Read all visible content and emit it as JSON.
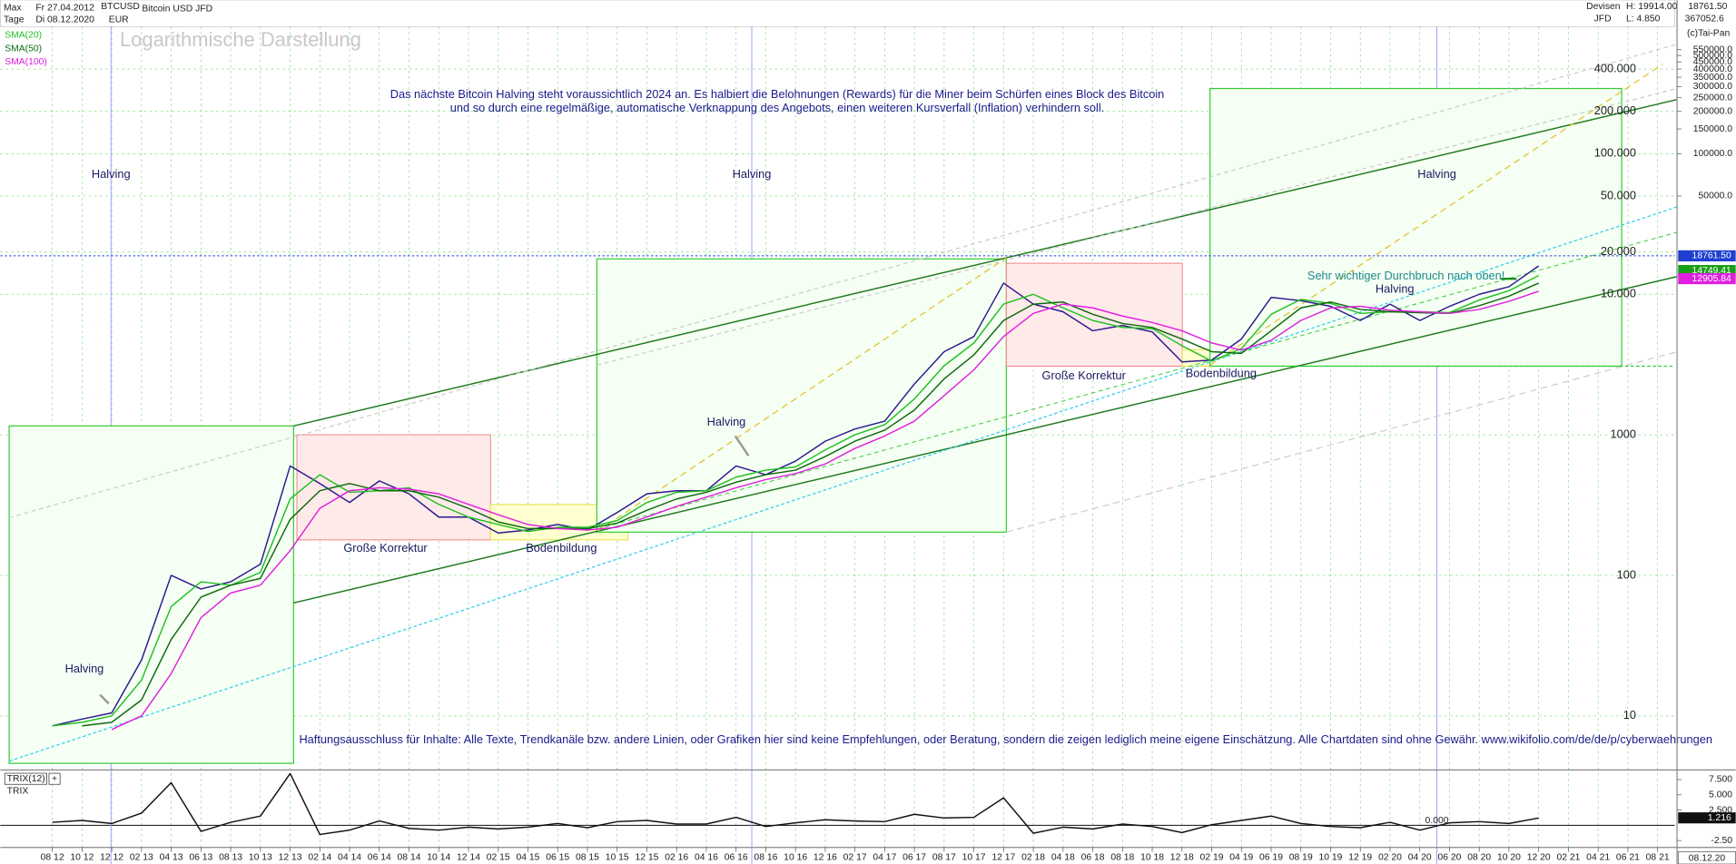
{
  "header": {
    "range": "Max",
    "from": "Fr 27.04.2012",
    "symbol": "BTCUSD",
    "interval": "Tage",
    "to": "Di 08.12.2020",
    "currency": "EUR",
    "market": "Devisen",
    "broker": "JFD",
    "high": "H: 19914.00",
    "low": "L: 4.850",
    "price": "18761.50",
    "volume": "367052.6",
    "copyright": "(c)Tai-Pan",
    "current_date": "08.12.20"
  },
  "chart_data": [
    {
      "type": "line",
      "scale": "log",
      "grid": true,
      "subtitle": "Logarithmische Darstellung",
      "categories": [
        "08 12",
        "10 12",
        "12 12",
        "02 13",
        "04 13",
        "06 13",
        "08 13",
        "10 13",
        "12 13",
        "02 14",
        "04 14",
        "06 14",
        "08 14",
        "10 14",
        "12 14",
        "02 15",
        "04 15",
        "06 15",
        "08 15",
        "10 15",
        "12 15",
        "02 16",
        "04 16",
        "06 16",
        "08 16",
        "10 16",
        "12 16",
        "02 17",
        "04 17",
        "06 17",
        "08 17",
        "10 17",
        "12 17",
        "02 18",
        "04 18",
        "06 18",
        "08 18",
        "10 18",
        "12 18",
        "02 19",
        "04 19",
        "06 19",
        "08 19",
        "10 19",
        "12 19",
        "02 20",
        "04 20",
        "06 20",
        "08 20",
        "10 20",
        "12 20",
        "02 21",
        "04 21",
        "06 21",
        "08 21"
      ],
      "ylim": [
        4.2,
        1240000
      ],
      "yticks": [
        10,
        100,
        1000,
        {
          "value": 10000,
          "label": "10.000"
        },
        {
          "value": 20000,
          "label": "20.000"
        },
        {
          "value": 50000,
          "label": "50.000"
        },
        {
          "value": 100000,
          "label": "100.000"
        },
        {
          "value": 200000,
          "label": "200.000"
        },
        {
          "value": 400000,
          "label": "400.000"
        }
      ],
      "yticks_right": [
        {
          "value": 50000,
          "label": "50000.0"
        },
        {
          "value": 100000,
          "label": "100000.0"
        },
        {
          "value": 150000,
          "label": "150000.0"
        },
        {
          "value": 200000,
          "label": "200000.0"
        },
        {
          "value": 250000,
          "label": "250000.0"
        },
        {
          "value": 300000,
          "label": "300000.0"
        },
        {
          "value": 350000,
          "label": "350000.0"
        },
        {
          "value": 400000,
          "label": "400000.0"
        },
        {
          "value": 450000,
          "label": "450000.0"
        },
        {
          "value": 500000,
          "label": "500000.0"
        },
        {
          "value": 550000,
          "label": "550000.0"
        }
      ],
      "series": [
        {
          "name": "Bitcoin USD JFD",
          "color": "#2a1a8c",
          "last": {
            "value": 18761.5,
            "label": "18761.50"
          },
          "last_color": "#1f3fd0",
          "values": [
            8.5,
            9.5,
            10.5,
            25,
            100,
            80,
            90,
            120,
            600,
            450,
            330,
            470,
            380,
            260,
            260,
            200,
            210,
            230,
            210,
            280,
            380,
            400,
            400,
            600,
            520,
            650,
            900,
            1100,
            1250,
            2300,
            3900,
            5000,
            12000,
            8500,
            7500,
            5500,
            6000,
            5400,
            3300,
            3400,
            4800,
            9500,
            9000,
            8200,
            6500,
            8500,
            6500,
            8200,
            10000,
            11300,
            15900,
            null,
            null,
            null,
            null
          ]
        },
        {
          "name": "SMA(20)",
          "color": "#22c022",
          "last": 14749.41,
          "last_color": "#18a018",
          "values": [
            8.5,
            9,
            10,
            18,
            60,
            90,
            85,
            105,
            350,
            520,
            390,
            400,
            420,
            320,
            260,
            230,
            205,
            220,
            220,
            245,
            330,
            390,
            400,
            500,
            560,
            590,
            780,
            1000,
            1180,
            1800,
            3100,
            4500,
            8500,
            10000,
            8000,
            6500,
            5800,
            5700,
            4300,
            3350,
            4100,
            7200,
            9200,
            8600,
            7300,
            7500,
            7500,
            7400,
            9100,
            10600,
            13600,
            null,
            null,
            null,
            null
          ]
        },
        {
          "name": "SMA(50)",
          "color": "#0e6a0e",
          "values": [
            null,
            8.5,
            9,
            13,
            35,
            70,
            85,
            95,
            250,
            400,
            450,
            400,
            400,
            360,
            300,
            240,
            215,
            215,
            215,
            235,
            290,
            350,
            390,
            460,
            520,
            560,
            700,
            900,
            1080,
            1500,
            2500,
            3700,
            6500,
            8500,
            8800,
            7200,
            6200,
            5800,
            4800,
            3900,
            3800,
            5500,
            8000,
            8800,
            7800,
            7500,
            7400,
            7300,
            8300,
            9700,
            12000,
            null,
            null,
            null,
            null
          ]
        },
        {
          "name": "SMA(100)",
          "color": "#e020e0",
          "last": 12905.84,
          "last_color": "#e020e0",
          "values": [
            null,
            null,
            8,
            10,
            20,
            50,
            75,
            85,
            150,
            300,
            400,
            420,
            410,
            380,
            320,
            270,
            230,
            215,
            210,
            220,
            260,
            310,
            360,
            420,
            480,
            530,
            620,
            800,
            980,
            1250,
            1900,
            2900,
            5000,
            7300,
            8500,
            8000,
            7000,
            6300,
            5500,
            4500,
            4000,
            4700,
            6500,
            8000,
            8200,
            7700,
            7500,
            7300,
            7800,
            8900,
            10500,
            null,
            null,
            null,
            null
          ]
        }
      ],
      "annotations": [
        "Das nächste Bitcoin Halving steht voraussichtlich 2024 an. Es halbiert die Belohnungen (Rewards) für die Miner beim Schürfen eines Block des Bitcoin",
        "und so durch eine regelmäßige, automatische Verknappung des Angebots, einen weiteren Kursverfall (Inflation) verhindern soll.",
        "Halving",
        "Halving",
        "Halving",
        "Halving",
        "Halving",
        "Halving",
        "Große Korrektur",
        "Bodenbildung",
        "Große Korrektur",
        "Bodenbildung",
        "Sehr wichtiger Durchbruch nach oben!",
        "Haftungsausschluss für Inhalte: Alle Texte, Trendkanäle bzw. andere Linien, oder Grafiken hier sind keine Empfehlungen, oder Beratung, sondern die zeigen lediglich meine eigene Einschätzung. Alle Chartdaten sind ohne Gewähr.  www.wikifolio.com/de/de/p/cyberwaehrungen"
      ]
    },
    {
      "type": "line",
      "title": "TRIX",
      "ylim": [
        -3.45,
        8.9
      ],
      "yticks": [
        {
          "value": 7.5,
          "label": "7.500"
        },
        {
          "value": 5,
          "label": "5.000"
        },
        {
          "value": 2.5,
          "label": "2.500"
        },
        {
          "value": -2.5,
          "label": "-2.50"
        }
      ],
      "zero_label": "0.000",
      "series": [
        {
          "name": "TRIX(12)",
          "color": "#111111",
          "last": 1.216,
          "values": [
            0.5,
            0.8,
            0.3,
            2,
            7,
            -1,
            0.5,
            1.5,
            8.5,
            -1.5,
            -0.8,
            0.7,
            -0.5,
            -0.8,
            -0.3,
            -0.6,
            -0.3,
            0.3,
            -0.4,
            0.6,
            0.8,
            0.2,
            0.2,
            1.3,
            -0.2,
            0.4,
            0.9,
            0.7,
            0.6,
            1.8,
            1.2,
            1.3,
            4.5,
            -1.3,
            -0.3,
            -0.6,
            0.2,
            -0.2,
            -1.2,
            0.1,
            0.8,
            1.5,
            0.3,
            -0.2,
            -0.4,
            0.5,
            -0.8,
            0.4,
            0.6,
            0.3,
            1.2,
            null,
            null,
            null,
            null
          ]
        }
      ]
    }
  ]
}
